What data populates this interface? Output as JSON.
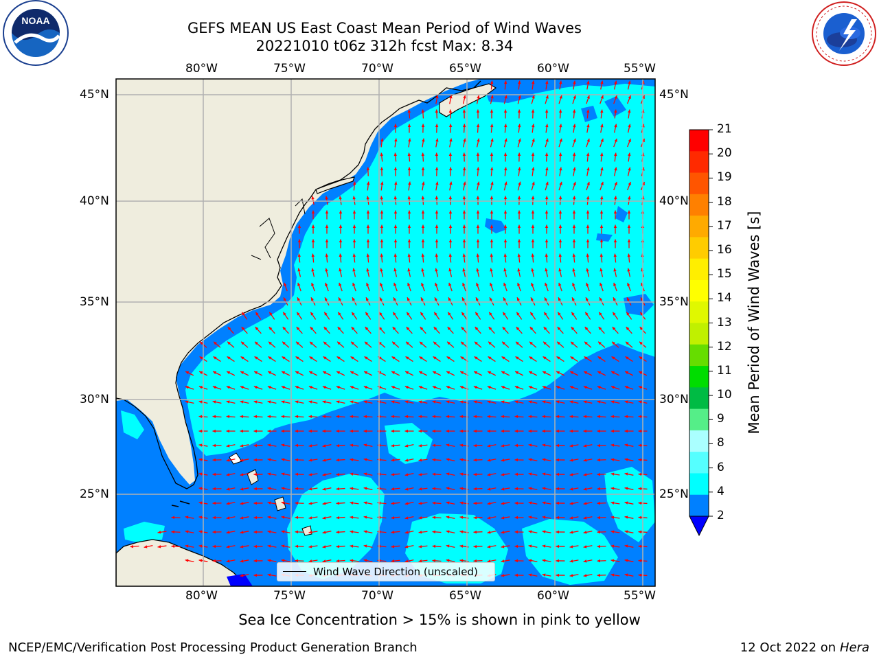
{
  "header": {
    "title_line1": "GEFS MEAN US East Coast Mean Period of Wind Waves",
    "title_line2": "20221010 t06z 312h fcst   Max: 8.34"
  },
  "logos": {
    "left": {
      "name": "noaa-logo",
      "text": "NOAA",
      "ring_text": "NATIONAL OCEANIC AND ATMOSPHERIC ADMINISTRATION · U.S. DEPARTMENT OF COMMERCE"
    },
    "right": {
      "name": "nws-logo",
      "ring_text": "NATIONAL WEATHER SERVICE"
    }
  },
  "map": {
    "lon_labels": [
      "80°W",
      "75°W",
      "70°W",
      "65°W",
      "60°W",
      "55°W"
    ],
    "lat_labels": [
      "45°N",
      "40°N",
      "35°N",
      "30°N",
      "25°N"
    ],
    "legend_label": "Wind Wave Direction (unscaled)",
    "land_color": "#efedde",
    "ocean_level1_color": "#0080ff",
    "ocean_level2_color": "#00ffff",
    "vector_color": "#ff0000"
  },
  "colorbar": {
    "label": "Mean Period of Wind Waves [s]",
    "ticks": [
      "21",
      "20",
      "19",
      "18",
      "17",
      "16",
      "15",
      "14",
      "13",
      "12",
      "11",
      "10",
      "9",
      "8",
      "6",
      "4",
      "2"
    ],
    "colors": [
      "#ff0000",
      "#ff2a00",
      "#ff5500",
      "#ff8000",
      "#ffaa00",
      "#ffcc00",
      "#ffee00",
      "#ffff00",
      "#e0f800",
      "#c0f000",
      "#66dd00",
      "#00dd00",
      "#00bb44",
      "#55ee88",
      "#aaffff",
      "#55ffff",
      "#00ffff",
      "#0080ff"
    ],
    "under_color": "#0000ff"
  },
  "note": "Sea Ice Concentration > 15% is shown in pink to yellow",
  "footer": {
    "left": "NCEP/EMC/Verification Post Processing Product Generation Branch",
    "right_date": "12 Oct 2022 on ",
    "right_host": "Hera"
  }
}
